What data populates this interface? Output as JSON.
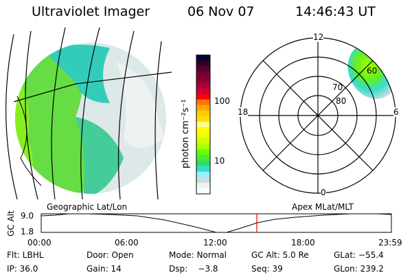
{
  "header": {
    "instrument": "Ultraviolet Imager",
    "date": "06 Nov 07",
    "time": "14:46:43 UT"
  },
  "colorbar": {
    "label": "photon cm⁻²s⁻¹",
    "ticks": [
      "100",
      "10"
    ],
    "colors": [
      "#000033",
      "#330022",
      "#550033",
      "#770033",
      "#880033",
      "#aa0033",
      "#cc0033",
      "#ff0000",
      "#ff7700",
      "#ffaa00",
      "#ffcc00",
      "#ffdd00",
      "#ffff88",
      "#ffff00",
      "#eeff00",
      "#ccff00",
      "#aaff00",
      "#66ff00",
      "#44ee33",
      "#33dd66",
      "#33ddcc",
      "#99eeff",
      "#ccdddd",
      "#eef5f0",
      "#ffffff"
    ]
  },
  "polar": {
    "mlt_labels": [
      "12",
      "18",
      "6",
      "0"
    ],
    "lat_labels": [
      "80",
      "70",
      "60"
    ]
  },
  "timeline": {
    "left_title": "Geographic Lat/Lon",
    "right_title": "Apex MLat/MLT",
    "ylabel": "GC Alt",
    "yticks": [
      "9.0",
      "1.8"
    ],
    "xticks": [
      "00:00",
      "06:00",
      "12:00",
      "18:00",
      "23:59"
    ],
    "current_time_color": "#ff0000"
  },
  "info": {
    "flt": "Flt: LBHL",
    "ip": "IP: 36.0",
    "door": "Door: Open",
    "gain": "Gain: 14",
    "mode": "Mode: Normal",
    "dsp": "Dsp:    −3.8",
    "gcalt": "GC Alt: 5.0 Re",
    "seq": "Seq: 39",
    "glat": "GLat: −55.4",
    "glon": "GLon: 239.2"
  }
}
